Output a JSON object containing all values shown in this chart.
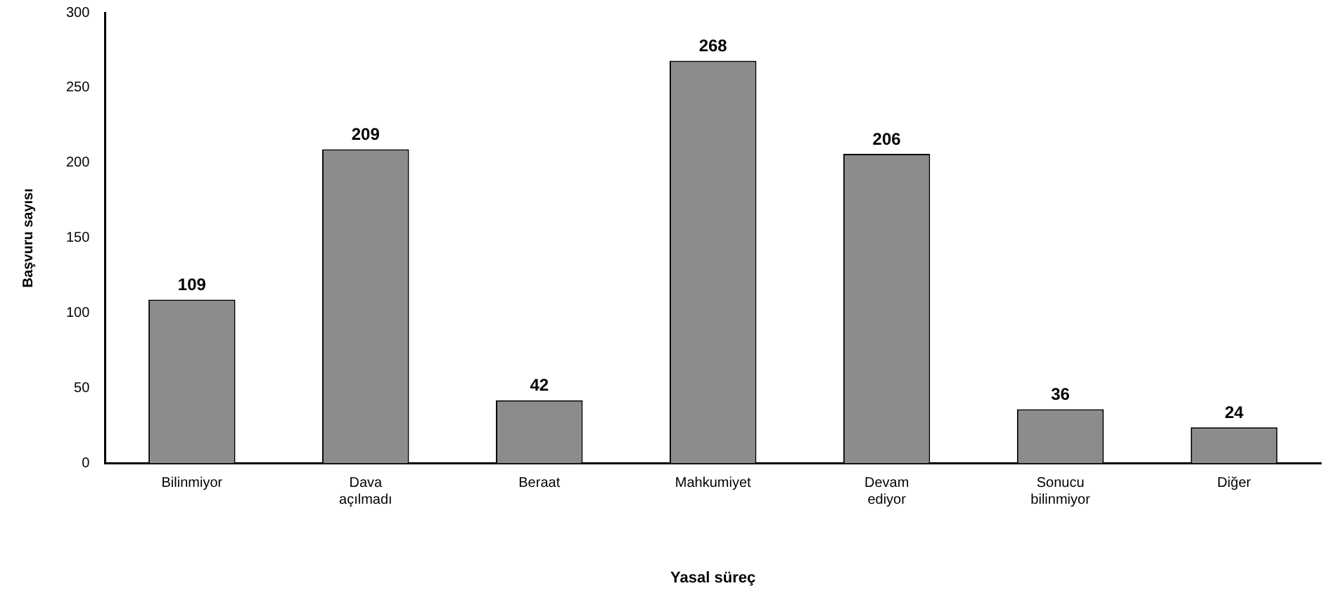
{
  "chart_data": {
    "type": "bar",
    "xlabel": "Yasal süreç",
    "ylabel": "Başvuru sayısı",
    "categories": [
      "Bilinmiyor",
      "Dava açılmadı",
      "Beraat",
      "Mahkumiyet",
      "Devam ediyor",
      "Sonucu bilinmiyor",
      "Diğer"
    ],
    "values": [
      109,
      209,
      42,
      268,
      206,
      36,
      24
    ],
    "color": "#8c8c8c",
    "ylim": [
      0,
      300
    ],
    "yticks": [
      0,
      50,
      100,
      150,
      200,
      250,
      300
    ],
    "grid": false,
    "legend": false,
    "data_labels": true
  }
}
